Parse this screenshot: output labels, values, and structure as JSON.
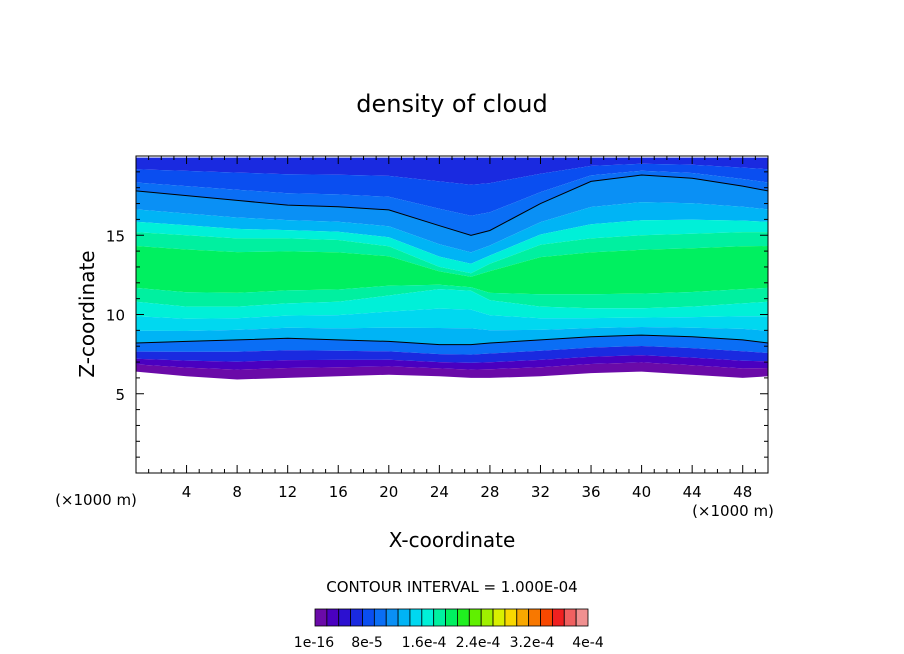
{
  "chart_data": {
    "type": "heatmap",
    "title": "density of cloud",
    "xlabel": "X-coordinate",
    "ylabel": "Z-coordinate",
    "x_unit_left": "(×1000 m)",
    "x_unit_right": "(×1000 m)",
    "xlim": [
      0,
      50
    ],
    "ylim": [
      0,
      20
    ],
    "x_ticks": [
      4,
      8,
      12,
      16,
      20,
      24,
      28,
      32,
      36,
      40,
      44,
      48
    ],
    "y_ticks": [
      5,
      10,
      15
    ],
    "contour_interval_text": "CONTOUR INTERVAL = 1.000E-04",
    "colorbar_labels": [
      "1e-16",
      "8e-5",
      "1.6e-4",
      "2.4e-4",
      "3.2e-4",
      "4e-4"
    ],
    "colorbar_colors": [
      "#6a0aa8",
      "#4a00c0",
      "#2c10d0",
      "#1a2ae0",
      "#0a4ef0",
      "#0a6ef5",
      "#0a90f5",
      "#00b4f5",
      "#00d8f0",
      "#00f0d8",
      "#00f0a0",
      "#00f060",
      "#20f020",
      "#60f000",
      "#a0f000",
      "#d8f000",
      "#f8d800",
      "#f8a800",
      "#f87800",
      "#f84800",
      "#f02020",
      "#f06060",
      "#f09090"
    ],
    "band_boundaries": {
      "x": [
        0,
        4,
        8,
        12,
        16,
        20,
        24,
        26.5,
        28,
        32,
        36,
        40,
        44,
        48,
        50
      ],
      "cloud_top": [
        19.9,
        19.9,
        19.9,
        19.9,
        19.9,
        19.9,
        19.9,
        19.9,
        19.9,
        19.9,
        19.9,
        19.9,
        19.9,
        19.9,
        19.9
      ],
      "isoline_top": [
        17.8,
        17.5,
        17.2,
        16.9,
        16.8,
        16.6,
        15.6,
        15.0,
        15.3,
        17.0,
        18.4,
        18.8,
        18.6,
        18.1,
        17.8
      ],
      "green_top": [
        15.2,
        15.0,
        14.8,
        14.8,
        14.7,
        14.3,
        13.0,
        12.6,
        13.2,
        14.4,
        14.8,
        15.0,
        15.1,
        15.2,
        15.2
      ],
      "green_bottom": [
        10.8,
        10.5,
        10.5,
        10.7,
        10.8,
        11.2,
        11.6,
        11.5,
        10.9,
        10.5,
        10.4,
        10.4,
        10.5,
        10.7,
        10.8
      ],
      "isoline_bottom": [
        8.2,
        8.3,
        8.4,
        8.5,
        8.4,
        8.3,
        8.1,
        8.1,
        8.2,
        8.4,
        8.6,
        8.7,
        8.6,
        8.4,
        8.2
      ],
      "cloud_base": [
        6.4,
        6.1,
        5.9,
        6.0,
        6.1,
        6.2,
        6.1,
        6.0,
        6.0,
        6.1,
        6.3,
        6.4,
        6.2,
        6.0,
        6.1
      ]
    }
  }
}
